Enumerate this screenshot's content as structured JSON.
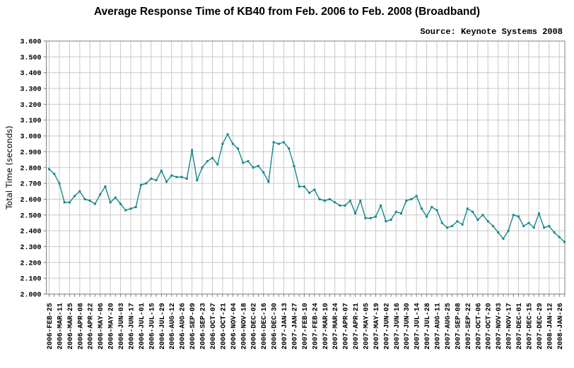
{
  "page": {
    "title": "Average Response Time of KB40 from Feb. 2006 to Feb. 2008 (Broadband)",
    "source_note": "Source: Keynote Systems 2008"
  },
  "chart_data": {
    "type": "line",
    "title": "Average Response Time of KB40 from Feb. 2006 to Feb. 2008 (Broadband)",
    "source_note": "Source: Keynote Systems 2008",
    "ylabel": "Total Time (seconds)",
    "ylim": [
      2.0,
      3.6
    ],
    "ytick_step": 0.1,
    "ytick_labels_desc": [
      "3.600",
      "3.500",
      "3.400",
      "3.300",
      "3.200",
      "3.100",
      "3.000",
      "2.900",
      "2.800",
      "2.700",
      "2.600",
      "2.500",
      "2.400",
      "2.300",
      "2.200",
      "2.100",
      "2.000"
    ],
    "grid": true,
    "legend": "none",
    "line_color": "#17878a",
    "gridline_color": "#c9c9c9",
    "border_color": "#7f7f7f",
    "x_label_every_n_points": 2,
    "x_tick_labels": [
      "2006-FEB-25",
      "2006-MAR-11",
      "2006-MAR-25",
      "2006-APR-08",
      "2006-APR-22",
      "2006-MAY-06",
      "2006-MAY-20",
      "2006-JUN-03",
      "2006-JUN-17",
      "2006-JUL-01",
      "2006-JUL-15",
      "2006-JUL-29",
      "2006-AUG-12",
      "2006-AUG-26",
      "2006-SEP-09",
      "2006-SEP-23",
      "2006-OCT-07",
      "2006-OCT-21",
      "2006-NOV-04",
      "2006-NOV-18",
      "2006-DEC-02",
      "2006-DEC-16",
      "2006-DEC-30",
      "2007-JAN-13",
      "2007-JAN-27",
      "2007-FEB-10",
      "2007-FEB-24",
      "2007-MAR-10",
      "2007-MAR-24",
      "2007-APR-07",
      "2007-APR-21",
      "2007-MAY-05",
      "2007-MAY-19",
      "2007-JUN-02",
      "2007-JUN-16",
      "2007-JUN-30",
      "2007-JUL-14",
      "2007-JUL-28",
      "2007-AUG-11",
      "2007-AUG-25",
      "2007-SEP-08",
      "2007-SEP-22",
      "2007-OCT-06",
      "2007-OCT-20",
      "2007-NOV-03",
      "2007-NOV-17",
      "2007-DEC-01",
      "2007-DEC-15",
      "2007-DEC-29",
      "2008-JAN-12",
      "2008-JAN-26"
    ],
    "values": [
      2.79,
      2.76,
      2.7,
      2.58,
      2.58,
      2.62,
      2.65,
      2.6,
      2.59,
      2.57,
      2.63,
      2.68,
      2.58,
      2.61,
      2.57,
      2.53,
      2.54,
      2.55,
      2.69,
      2.7,
      2.73,
      2.72,
      2.78,
      2.71,
      2.75,
      2.74,
      2.74,
      2.73,
      2.91,
      2.72,
      2.8,
      2.84,
      2.86,
      2.82,
      2.95,
      3.01,
      2.95,
      2.92,
      2.83,
      2.84,
      2.8,
      2.81,
      2.77,
      2.71,
      2.96,
      2.95,
      2.96,
      2.92,
      2.81,
      2.68,
      2.68,
      2.64,
      2.66,
      2.6,
      2.59,
      2.6,
      2.58,
      2.56,
      2.56,
      2.59,
      2.51,
      2.59,
      2.48,
      2.48,
      2.49,
      2.56,
      2.46,
      2.47,
      2.52,
      2.51,
      2.59,
      2.6,
      2.62,
      2.54,
      2.49,
      2.55,
      2.53,
      2.45,
      2.42,
      2.43,
      2.46,
      2.44,
      2.54,
      2.52,
      2.47,
      2.5,
      2.46,
      2.43,
      2.39,
      2.35,
      2.4,
      2.5,
      2.49,
      2.43,
      2.45,
      2.42,
      2.51,
      2.42,
      2.43,
      2.39,
      2.36,
      2.33
    ]
  }
}
